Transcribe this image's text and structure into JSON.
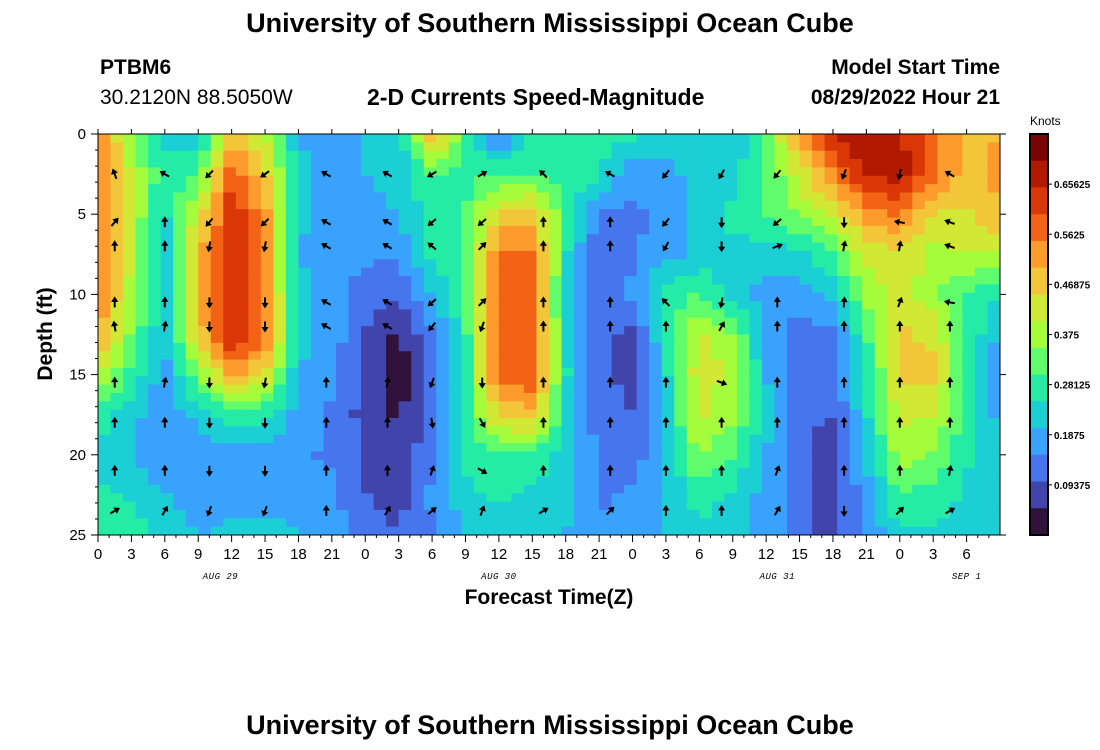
{
  "header": {
    "title": "University of Southern Mississippi Ocean Cube",
    "station": "PTBM6",
    "coords": "30.2120N  88.5050W",
    "subtitle": "2-D Currents Speed-Magnitude",
    "model_label": "Model Start Time",
    "model_time": "08/29/2022 Hour 21"
  },
  "footer": {
    "title": "University of Southern Mississippi Ocean Cube"
  },
  "chart_data": {
    "type": "heatmap",
    "title": "2-D Currents Speed-Magnitude",
    "xlabel": "Forecast Time(Z)",
    "ylabel": "Depth (ft)",
    "x_range_hours": [
      0,
      81
    ],
    "ylim": [
      0,
      25
    ],
    "x_ticks": [
      "0",
      "3",
      "6",
      "9",
      "12",
      "15",
      "18",
      "21",
      "0",
      "3",
      "6",
      "9",
      "12",
      "15",
      "18",
      "21",
      "0",
      "3",
      "6",
      "9",
      "12",
      "15",
      "18",
      "21",
      "0",
      "3",
      "6"
    ],
    "y_ticks": [
      "0",
      "5",
      "10",
      "15",
      "20",
      "25"
    ],
    "date_labels": [
      {
        "hour": 11,
        "label": "AUG 29"
      },
      {
        "hour": 36,
        "label": "AUG 30"
      },
      {
        "hour": 61,
        "label": "AUG 31"
      },
      {
        "hour": 78,
        "label": "SEP 1"
      }
    ],
    "colorbar": {
      "unit": "Knots",
      "range": [
        0,
        0.75
      ],
      "ticks": [
        "0.65625",
        "0.5625",
        "0.46875",
        "0.375",
        "0.28125",
        "0.1875",
        "0.09375"
      ],
      "tick_values": [
        0.65625,
        0.5625,
        0.46875,
        0.375,
        0.28125,
        0.1875,
        0.09375
      ],
      "colors": [
        "#30123b",
        "#4145ab",
        "#4675ed",
        "#39a2fc",
        "#1bcfd4",
        "#24eca6",
        "#61fc6c",
        "#a4fc3b",
        "#d1e834",
        "#f3c63a",
        "#fe9b2d",
        "#f36315",
        "#d93806",
        "#b11901",
        "#7a0403"
      ]
    },
    "speed_field": {
      "note": "Current speed magnitude (knots), rows = depth 0..25 ft every 2.5 ft, columns = forecast hour 0..81 every 3 h",
      "hours": [
        0,
        3,
        6,
        9,
        12,
        15,
        18,
        21,
        24,
        27,
        30,
        33,
        36,
        39,
        42,
        45,
        48,
        51,
        54,
        57,
        60,
        63,
        66,
        69,
        72,
        75,
        78,
        81
      ],
      "depths": [
        0,
        2.5,
        5,
        7.5,
        10,
        12.5,
        15,
        17.5,
        20,
        22.5,
        25
      ],
      "values": [
        [
          0.56,
          0.36,
          0.24,
          0.22,
          0.46,
          0.4,
          0.2,
          0.16,
          0.2,
          0.2,
          0.52,
          0.3,
          0.1,
          0.3,
          0.28,
          0.26,
          0.26,
          0.24,
          0.24,
          0.2,
          0.32,
          0.52,
          0.66,
          0.7,
          0.66,
          0.58,
          0.48,
          0.5
        ],
        [
          0.56,
          0.4,
          0.26,
          0.3,
          0.6,
          0.46,
          0.22,
          0.18,
          0.2,
          0.22,
          0.3,
          0.28,
          0.3,
          0.3,
          0.28,
          0.26,
          0.16,
          0.18,
          0.22,
          0.24,
          0.3,
          0.42,
          0.54,
          0.66,
          0.68,
          0.56,
          0.48,
          0.52
        ],
        [
          0.56,
          0.4,
          0.24,
          0.42,
          0.64,
          0.52,
          0.22,
          0.16,
          0.18,
          0.2,
          0.28,
          0.3,
          0.46,
          0.48,
          0.3,
          0.14,
          0.14,
          0.16,
          0.22,
          0.26,
          0.3,
          0.36,
          0.42,
          0.52,
          0.56,
          0.44,
          0.44,
          0.5
        ],
        [
          0.56,
          0.4,
          0.22,
          0.48,
          0.64,
          0.52,
          0.2,
          0.16,
          0.16,
          0.16,
          0.26,
          0.3,
          0.56,
          0.56,
          0.26,
          0.1,
          0.14,
          0.18,
          0.22,
          0.24,
          0.22,
          0.24,
          0.3,
          0.42,
          0.44,
          0.38,
          0.4,
          0.4
        ],
        [
          0.56,
          0.38,
          0.22,
          0.48,
          0.66,
          0.54,
          0.22,
          0.18,
          0.12,
          0.1,
          0.2,
          0.3,
          0.58,
          0.58,
          0.24,
          0.12,
          0.16,
          0.28,
          0.3,
          0.22,
          0.18,
          0.18,
          0.22,
          0.36,
          0.44,
          0.36,
          0.3,
          0.26
        ],
        [
          0.52,
          0.34,
          0.2,
          0.46,
          0.66,
          0.56,
          0.22,
          0.18,
          0.1,
          0.04,
          0.14,
          0.28,
          0.58,
          0.6,
          0.24,
          0.12,
          0.08,
          0.26,
          0.42,
          0.36,
          0.18,
          0.12,
          0.14,
          0.3,
          0.46,
          0.44,
          0.3,
          0.18
        ],
        [
          0.4,
          0.28,
          0.18,
          0.34,
          0.52,
          0.44,
          0.2,
          0.16,
          0.08,
          0.02,
          0.12,
          0.28,
          0.58,
          0.6,
          0.26,
          0.12,
          0.08,
          0.24,
          0.44,
          0.38,
          0.2,
          0.12,
          0.12,
          0.26,
          0.46,
          0.46,
          0.3,
          0.16
        ],
        [
          0.28,
          0.22,
          0.16,
          0.22,
          0.28,
          0.26,
          0.18,
          0.14,
          0.08,
          0.04,
          0.12,
          0.28,
          0.46,
          0.48,
          0.24,
          0.12,
          0.1,
          0.22,
          0.42,
          0.36,
          0.22,
          0.12,
          0.1,
          0.24,
          0.42,
          0.4,
          0.28,
          0.18
        ],
        [
          0.24,
          0.2,
          0.16,
          0.16,
          0.18,
          0.18,
          0.16,
          0.14,
          0.1,
          0.06,
          0.14,
          0.26,
          0.3,
          0.3,
          0.22,
          0.14,
          0.12,
          0.2,
          0.36,
          0.3,
          0.2,
          0.12,
          0.06,
          0.2,
          0.38,
          0.34,
          0.26,
          0.2
        ],
        [
          0.26,
          0.24,
          0.2,
          0.16,
          0.16,
          0.18,
          0.18,
          0.16,
          0.1,
          0.08,
          0.16,
          0.24,
          0.26,
          0.24,
          0.22,
          0.14,
          0.16,
          0.2,
          0.28,
          0.24,
          0.18,
          0.12,
          0.08,
          0.18,
          0.3,
          0.28,
          0.24,
          0.2
        ],
        [
          0.3,
          0.28,
          0.24,
          0.2,
          0.22,
          0.22,
          0.2,
          0.18,
          0.12,
          0.1,
          0.14,
          0.2,
          0.22,
          0.2,
          0.2,
          0.16,
          0.16,
          0.2,
          0.24,
          0.22,
          0.18,
          0.12,
          0.08,
          0.16,
          0.24,
          0.24,
          0.22,
          0.2
        ]
      ]
    },
    "vectors": {
      "note": "Current direction arrows in compass degrees (0 = up/north, 90 = right/east); rows at depths, cols at hours",
      "hours": [
        1.5,
        6,
        10,
        15,
        20.5,
        26,
        30,
        34.5,
        40,
        46,
        51,
        56,
        61,
        67,
        72,
        76.5
      ],
      "depths": [
        2.5,
        5.5,
        7,
        10.5,
        12,
        15.5,
        18,
        21,
        23.5
      ],
      "directions": [
        [
          340,
          300,
          225,
          235,
          300,
          300,
          240,
          60,
          315,
          300,
          220,
          210,
          220,
          200,
          190,
          300
        ],
        [
          40,
          0,
          220,
          225,
          300,
          300,
          230,
          230,
          0,
          0,
          220,
          180,
          230,
          180,
          280,
          290
        ],
        [
          0,
          0,
          190,
          190,
          300,
          300,
          310,
          45,
          0,
          0,
          210,
          180,
          70,
          10,
          10,
          290
        ],
        [
          0,
          0,
          180,
          180,
          300,
          300,
          230,
          45,
          0,
          0,
          315,
          190,
          0,
          5,
          20,
          280
        ],
        [
          350,
          10,
          180,
          180,
          300,
          300,
          220,
          200,
          0,
          0,
          0,
          30,
          0,
          0,
          0,
          0
        ],
        [
          0,
          10,
          180,
          190,
          0,
          10,
          200,
          180,
          0,
          0,
          0,
          110,
          0,
          0,
          0,
          0
        ],
        [
          0,
          0,
          180,
          180,
          0,
          0,
          170,
          150,
          0,
          0,
          0,
          0,
          0,
          0,
          0,
          0
        ],
        [
          0,
          0,
          180,
          180,
          0,
          0,
          20,
          120,
          0,
          0,
          0,
          0,
          20,
          0,
          0,
          10
        ],
        [
          60,
          30,
          200,
          200,
          0,
          30,
          50,
          20,
          60,
          45,
          0,
          0,
          30,
          180,
          45,
          60
        ]
      ]
    }
  }
}
